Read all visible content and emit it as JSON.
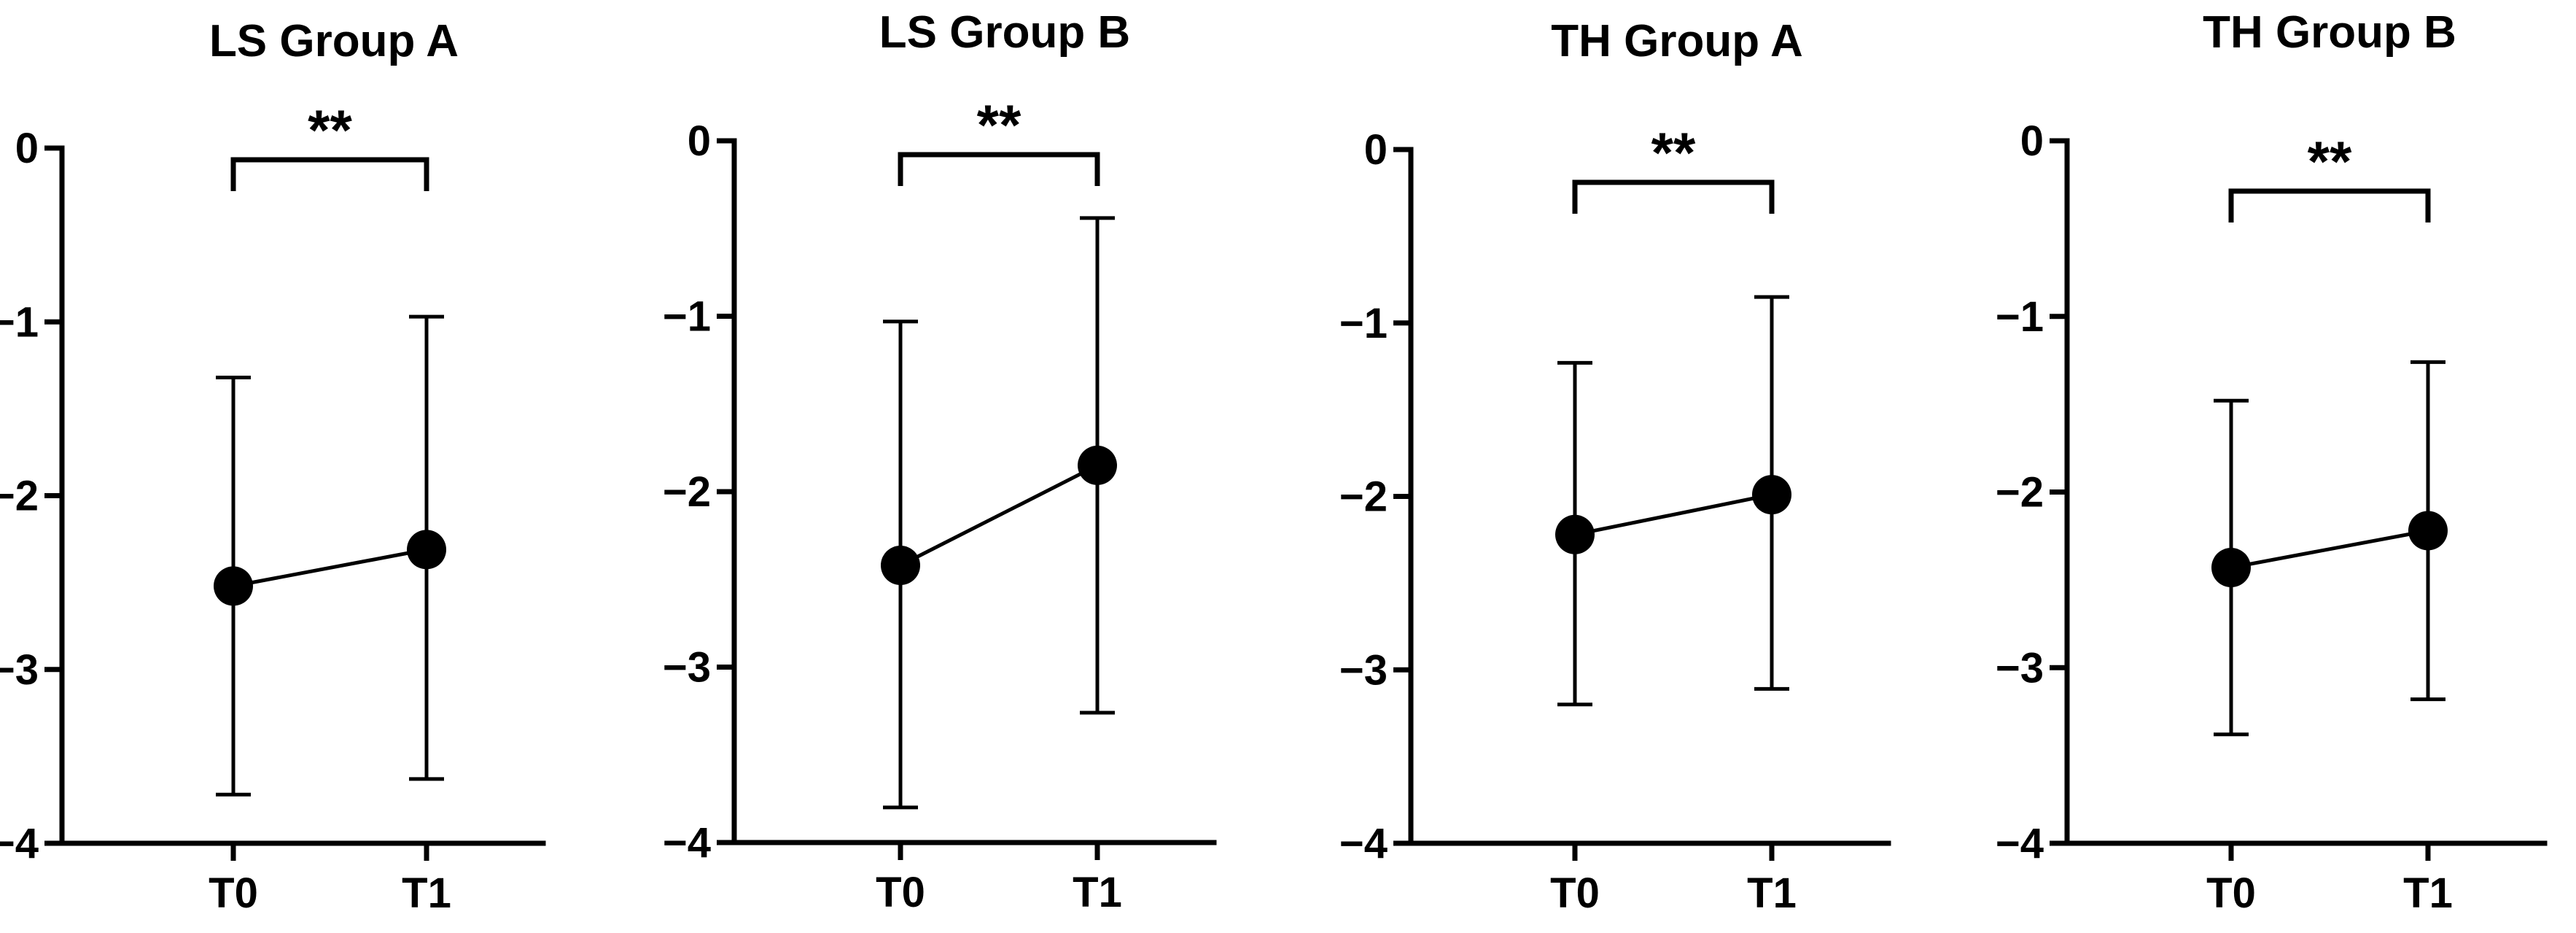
{
  "chart_data": [
    {
      "type": "line",
      "title": "LS Group A",
      "categories": [
        "T0",
        "T1"
      ],
      "mean": [
        -2.52,
        -2.31
      ],
      "lower": [
        -3.72,
        -3.63
      ],
      "upper": [
        -1.32,
        -0.97
      ],
      "ylim": [
        -4,
        0
      ],
      "yticks": [
        "0",
        "−1",
        "−2",
        "−3",
        "−4"
      ],
      "significance": "**",
      "xlabel": "",
      "ylabel": ""
    },
    {
      "type": "line",
      "title": "LS Group B",
      "categories": [
        "T0",
        "T1"
      ],
      "mean": [
        -2.42,
        -1.85
      ],
      "lower": [
        -3.8,
        -3.26
      ],
      "upper": [
        -1.03,
        -0.44
      ],
      "ylim": [
        -4,
        0
      ],
      "yticks": [
        "0",
        "−1",
        "−2",
        "−3",
        "−4"
      ],
      "significance": "**",
      "xlabel": "",
      "ylabel": ""
    },
    {
      "type": "line",
      "title": "TH Group A",
      "categories": [
        "T0",
        "T1"
      ],
      "mean": [
        -2.22,
        -1.99
      ],
      "lower": [
        -3.2,
        -3.11
      ],
      "upper": [
        -1.23,
        -0.85
      ],
      "ylim": [
        -4,
        0
      ],
      "yticks": [
        "0",
        "−1",
        "−2",
        "−3",
        "−4"
      ],
      "significance": "**",
      "xlabel": "",
      "ylabel": ""
    },
    {
      "type": "line",
      "title": "TH Group B",
      "categories": [
        "T0",
        "T1"
      ],
      "mean": [
        -2.43,
        -2.22
      ],
      "lower": [
        -3.38,
        -3.18
      ],
      "upper": [
        -1.48,
        -1.26
      ],
      "ylim": [
        -4,
        0
      ],
      "yticks": [
        "0",
        "−1",
        "−2",
        "−3",
        "−4"
      ],
      "significance": "**",
      "xlabel": "",
      "ylabel": ""
    }
  ],
  "colors": {
    "ink": "#000000",
    "background": "#ffffff"
  }
}
